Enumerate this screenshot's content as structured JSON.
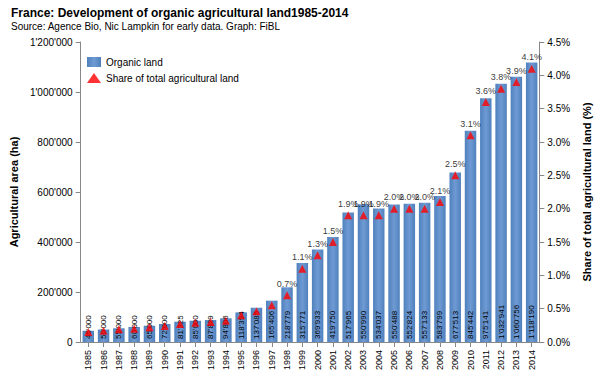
{
  "chart_data": {
    "type": "bar",
    "title": "France: Development of organic agricultural land1985-2014",
    "subtitle": "Source: Agence Bio, Nic Lampkin for early data. Graph: FiBL",
    "categories": [
      "1985",
      "1986",
      "1987",
      "1988",
      "1989",
      "1990",
      "1991",
      "1992",
      "1993",
      "1994",
      "1995",
      "1996",
      "1997",
      "1998",
      "1999",
      "2000",
      "2001",
      "2002",
      "2003",
      "2004",
      "2005",
      "2006",
      "2007",
      "2008",
      "2009",
      "2010",
      "2011",
      "2012",
      "2013",
      "2014"
    ],
    "series": [
      {
        "name": "Organic land",
        "type": "bar",
        "color": "#4f81bd",
        "values": [
          45000,
          50000,
          55000,
          60000,
          65000,
          72000,
          81225,
          85000,
          87829,
          94806,
          118394,
          137085,
          165406,
          218779,
          315771,
          369933,
          419750,
          517965,
          550990,
          534037,
          550488,
          552824,
          557133,
          583799,
          677513,
          845442,
          975141,
          1032941,
          1060756,
          1118190
        ],
        "value_labels": [
          "45'000",
          "50'000",
          "55'000",
          "60'000",
          "65'000",
          "72'000",
          "81'225",
          "85'000",
          "87'829",
          "94'806",
          "118'394",
          "137'085",
          "165'406",
          "218'779",
          "315'771",
          "369'933",
          "419'750",
          "517'965",
          "550'990",
          "534'037",
          "550'488",
          "552'824",
          "557'133",
          "583'799",
          "677'513",
          "845'442",
          "975'141",
          "1'032'941",
          "1'060'756",
          "1'118'190"
        ]
      },
      {
        "name": "Share of total agricultural land",
        "type": "scatter",
        "axis": "y2",
        "color": "#ff0000",
        "marker": "triangle",
        "values": [
          0.15,
          0.17,
          0.19,
          0.2,
          0.22,
          0.24,
          0.27,
          0.29,
          0.3,
          0.32,
          0.4,
          0.46,
          0.55,
          0.7,
          1.1,
          1.3,
          1.5,
          1.9,
          1.9,
          1.9,
          2.0,
          2.0,
          2.0,
          2.1,
          2.5,
          3.1,
          3.6,
          3.8,
          3.9,
          4.1
        ],
        "value_labels": [
          null,
          null,
          null,
          null,
          null,
          null,
          null,
          null,
          null,
          null,
          null,
          null,
          null,
          "0.7%",
          "1.1%",
          "1.3%",
          "1.5%",
          "1.9%",
          "1.9%",
          "1.9%",
          "2.0%",
          "2.0%",
          "2.0%",
          "2.1%",
          "2.5%",
          "3.1%",
          "3.6%",
          "3.8%",
          "3.9%",
          "4.1%"
        ]
      }
    ],
    "ylabel": "Agricultural area (ha)",
    "y2label": "Share of total agricultural land (%)",
    "ylim": [
      0,
      1200000
    ],
    "yticks": [
      0,
      {
        "value": 200000,
        "label": "200'000"
      },
      {
        "value": 400000,
        "label": "400'000"
      },
      {
        "value": 600000,
        "label": "600'000"
      },
      {
        "value": 800000,
        "label": "800'000"
      },
      {
        "value": 1000000,
        "label": "1'000'000"
      },
      {
        "value": 1200000,
        "label": "1'200'000"
      }
    ],
    "y2lim": [
      0,
      4.5
    ],
    "y2ticks": [
      {
        "value": 0,
        "label": "0.0%"
      },
      {
        "value": 0.5,
        "label": "0.5%"
      },
      {
        "value": 1,
        "label": "1.0%"
      },
      {
        "value": 1.5,
        "label": "1.5%"
      },
      {
        "value": 2,
        "label": "2.0%"
      },
      {
        "value": 2.5,
        "label": "2.5%"
      },
      {
        "value": 3,
        "label": "3.0%"
      },
      {
        "value": 3.5,
        "label": "3.5%"
      },
      {
        "value": 4,
        "label": "4.0%"
      },
      {
        "value": 4.5,
        "label": "4.5%"
      }
    ],
    "grid": false,
    "legend": "upper left",
    "data_labels": true
  }
}
